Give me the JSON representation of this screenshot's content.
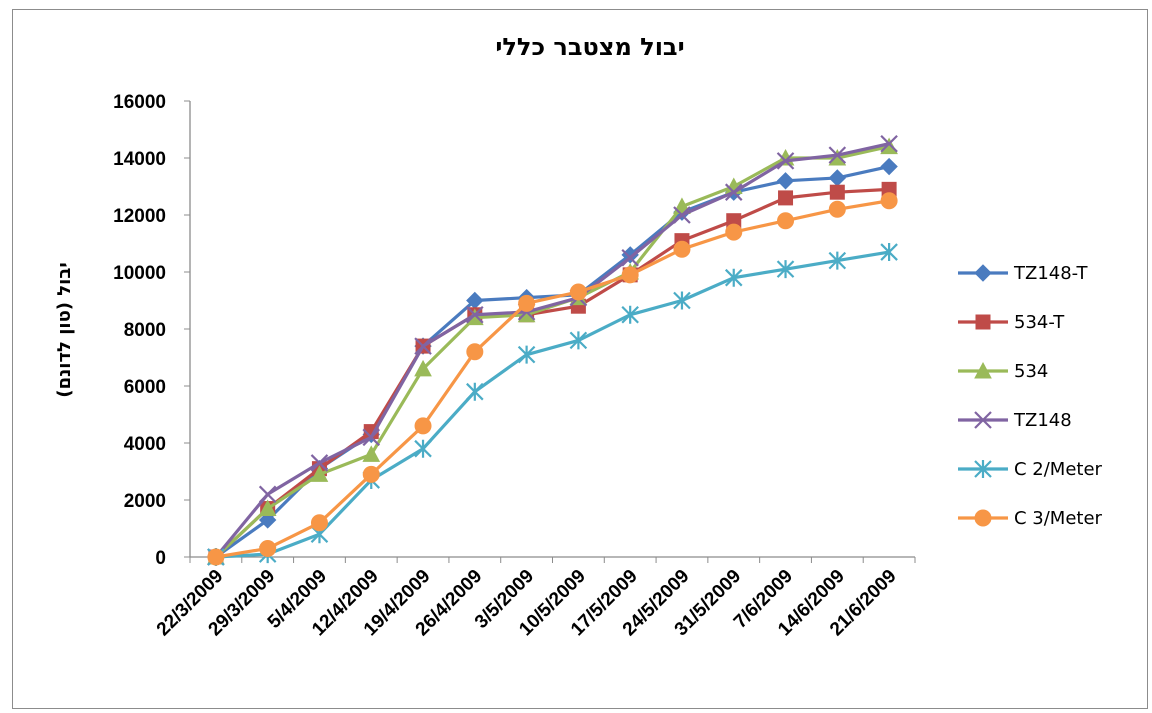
{
  "chart_data": {
    "type": "line",
    "title": "יבול מצטבר כללי",
    "xlabel": "",
    "ylabel": "יבול (טון לדונם)",
    "ylim": [
      0,
      16000
    ],
    "y_ticks": [
      0,
      2000,
      4000,
      6000,
      8000,
      10000,
      12000,
      14000,
      16000
    ],
    "grid": false,
    "legend_position": "right",
    "categories": [
      "22/3/2009",
      "29/3/2009",
      "5/4/2009",
      "12/4/2009",
      "19/4/2009",
      "26/4/2009",
      "3/5/2009",
      "10/5/2009",
      "17/5/2009",
      "24/5/2009",
      "31/5/2009",
      "7/6/2009",
      "14/6/2009",
      "21/6/2009"
    ],
    "series": [
      {
        "name": "TZ148-T",
        "color": "#4a7bbf",
        "marker": "diamond",
        "values": [
          0,
          1300,
          3100,
          4300,
          7400,
          9000,
          9100,
          9200,
          10600,
          12100,
          12800,
          13200,
          13300,
          13700
        ]
      },
      {
        "name": "534-T",
        "color": "#bf4b48",
        "marker": "square",
        "values": [
          0,
          1700,
          3100,
          4400,
          7400,
          8500,
          8500,
          8800,
          9900,
          11100,
          11800,
          12600,
          12800,
          12900
        ]
      },
      {
        "name": "534",
        "color": "#9aba59",
        "marker": "triangle",
        "values": [
          0,
          1700,
          2900,
          3600,
          6600,
          8400,
          8500,
          9100,
          10000,
          12300,
          13000,
          14000,
          14000,
          14400
        ]
      },
      {
        "name": "TZ148",
        "color": "#8064a2",
        "marker": "x",
        "values": [
          0,
          2200,
          3300,
          4200,
          7400,
          8500,
          8600,
          9100,
          10500,
          12000,
          12800,
          13900,
          14100,
          14500
        ]
      },
      {
        "name": "C 2/Meter",
        "color": "#4bacc6",
        "marker": "star",
        "values": [
          0,
          100,
          800,
          2700,
          3800,
          5800,
          7100,
          7600,
          8500,
          9000,
          9800,
          10100,
          10400,
          10700
        ]
      },
      {
        "name": "C 3/Meter",
        "color": "#f79646",
        "marker": "circle",
        "values": [
          0,
          300,
          1200,
          2900,
          4600,
          7200,
          8900,
          9300,
          9900,
          10800,
          11400,
          11800,
          12200,
          12500
        ]
      }
    ]
  }
}
